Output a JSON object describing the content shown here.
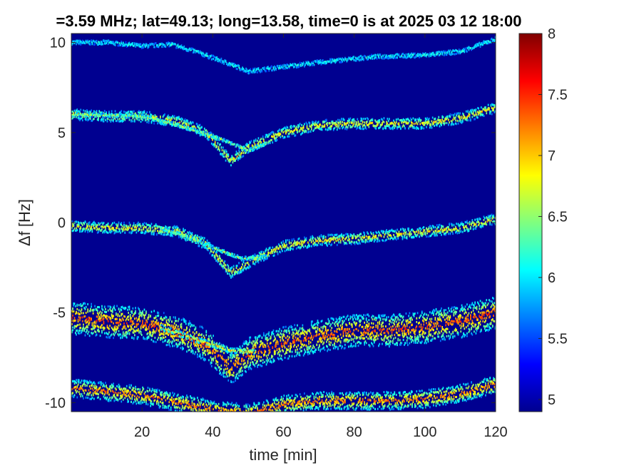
{
  "chart_data": {
    "type": "heatmap",
    "title": "=3.59 MHz;  lat=49.13; long=13.58, time=0 is at 2025 03 12 18:00",
    "xlabel": "time [min]",
    "ylabel": "Δf [Hz]",
    "xlim": [
      0,
      120
    ],
    "ylim": [
      -10.5,
      10.5
    ],
    "xticks": [
      20,
      40,
      60,
      80,
      100,
      120
    ],
    "yticks": [
      10,
      5,
      0,
      -5,
      -10
    ],
    "colorbar": {
      "range": [
        4.9,
        8
      ],
      "ticks": [
        8,
        7.5,
        7,
        6.5,
        6,
        5.5,
        5
      ],
      "colormap": "jet"
    },
    "background_value": 5,
    "traces": [
      {
        "id": "trace-plus10",
        "level": 6.1,
        "spread": 0.12,
        "points": [
          [
            0,
            10.0
          ],
          [
            10,
            10.0
          ],
          [
            20,
            9.8
          ],
          [
            28,
            9.9
          ],
          [
            35,
            9.5
          ],
          [
            42,
            9.0
          ],
          [
            50,
            8.4
          ],
          [
            58,
            8.6
          ],
          [
            70,
            8.9
          ],
          [
            85,
            9.2
          ],
          [
            100,
            9.3
          ],
          [
            110,
            9.5
          ],
          [
            120,
            10.2
          ]
        ]
      },
      {
        "id": "trace-plus5-a",
        "level": 6.9,
        "spread": 0.3,
        "points": [
          [
            0,
            6.0
          ],
          [
            10,
            5.9
          ],
          [
            20,
            5.9
          ],
          [
            30,
            5.6
          ],
          [
            38,
            5.0
          ],
          [
            45,
            3.4
          ],
          [
            50,
            4.2
          ],
          [
            60,
            5.0
          ],
          [
            70,
            5.4
          ],
          [
            80,
            5.5
          ],
          [
            90,
            5.5
          ],
          [
            100,
            5.5
          ],
          [
            110,
            5.8
          ],
          [
            120,
            6.4
          ]
        ]
      },
      {
        "id": "trace-plus5-b",
        "level": 6.6,
        "spread": 0.1,
        "points": [
          [
            0,
            6.0
          ],
          [
            20,
            5.9
          ],
          [
            30,
            5.4
          ],
          [
            40,
            4.8
          ],
          [
            50,
            4.0
          ],
          [
            55,
            4.4
          ]
        ]
      },
      {
        "id": "trace-zero-a",
        "level": 6.9,
        "spread": 0.3,
        "points": [
          [
            0,
            -0.2
          ],
          [
            10,
            -0.3
          ],
          [
            20,
            -0.3
          ],
          [
            30,
            -0.5
          ],
          [
            38,
            -1.2
          ],
          [
            45,
            -2.8
          ],
          [
            52,
            -2.0
          ],
          [
            60,
            -1.3
          ],
          [
            70,
            -1.0
          ],
          [
            80,
            -0.9
          ],
          [
            90,
            -0.7
          ],
          [
            100,
            -0.5
          ],
          [
            110,
            -0.3
          ],
          [
            120,
            0.2
          ]
        ]
      },
      {
        "id": "trace-zero-b",
        "level": 6.6,
        "spread": 0.1,
        "points": [
          [
            25,
            -0.3
          ],
          [
            33,
            -0.8
          ],
          [
            40,
            -1.4
          ],
          [
            48,
            -2.0
          ],
          [
            55,
            -1.9
          ]
        ]
      },
      {
        "id": "trace-minus5-a",
        "level": 7.4,
        "spread": 0.9,
        "points": [
          [
            0,
            -5.3
          ],
          [
            10,
            -5.5
          ],
          [
            20,
            -5.6
          ],
          [
            30,
            -6.1
          ],
          [
            38,
            -6.8
          ],
          [
            45,
            -8.1
          ],
          [
            50,
            -7.3
          ],
          [
            60,
            -6.7
          ],
          [
            70,
            -6.3
          ],
          [
            80,
            -6.0
          ],
          [
            90,
            -6.0
          ],
          [
            100,
            -5.8
          ],
          [
            110,
            -5.5
          ],
          [
            120,
            -5.0
          ]
        ]
      },
      {
        "id": "trace-minus5-b",
        "level": 7.0,
        "spread": 0.15,
        "points": [
          [
            25,
            -5.8
          ],
          [
            35,
            -6.5
          ],
          [
            45,
            -7.1
          ],
          [
            52,
            -7.2
          ]
        ]
      },
      {
        "id": "trace-minus10-a",
        "level": 7.3,
        "spread": 0.5,
        "points": [
          [
            0,
            -9.2
          ],
          [
            10,
            -9.4
          ],
          [
            20,
            -9.6
          ],
          [
            30,
            -10.0
          ],
          [
            40,
            -10.4
          ],
          [
            50,
            -10.6
          ],
          [
            60,
            -10.1
          ],
          [
            70,
            -9.9
          ],
          [
            80,
            -9.9
          ],
          [
            90,
            -9.9
          ],
          [
            100,
            -9.8
          ],
          [
            110,
            -9.5
          ],
          [
            120,
            -9.0
          ]
        ]
      }
    ]
  }
}
